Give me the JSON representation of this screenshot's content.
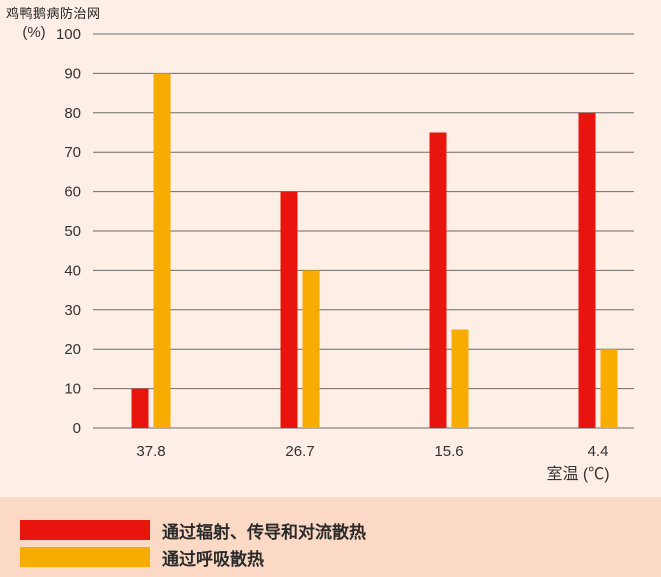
{
  "watermark": "鸡鸭鹅病防治网",
  "colors": {
    "background": "#fdeee6",
    "legend_band": "#fbd9c5",
    "red": "#e8150f",
    "orange": "#f8ab00",
    "grid": "#6b6b6b"
  },
  "chart_data": {
    "type": "bar",
    "categories": [
      "37.8",
      "26.7",
      "15.6",
      "4.4"
    ],
    "series": [
      {
        "name": "通过辐射、传导和对流散热",
        "color": "#e8150f",
        "values": [
          10,
          60,
          75,
          80
        ]
      },
      {
        "name": "通过呼吸散热",
        "color": "#f8ab00",
        "values": [
          90,
          40,
          25,
          20
        ]
      }
    ],
    "ylabel": "(%)",
    "xlabel": "室温 (℃)",
    "ylim": [
      0,
      100
    ],
    "yticks": [
      0,
      10,
      20,
      30,
      40,
      50,
      60,
      70,
      80,
      90,
      100
    ],
    "grid": true,
    "legend_position": "bottom"
  }
}
